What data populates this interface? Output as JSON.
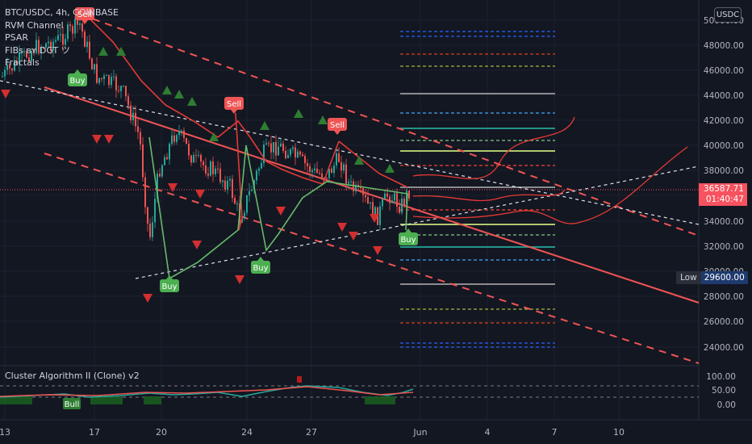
{
  "header": {
    "symbol_line": "BTC/USDC, 4h, COINBASE",
    "indicators": [
      "RVM Channel",
      "PSAR",
      "FIBs ʙʏ DGT ツ",
      "Fractals"
    ]
  },
  "sub_panel": {
    "title": "Cluster Algorithm II (Clone) v2"
  },
  "currency_button": "USDC",
  "last_price": {
    "value": "36587.71",
    "countdown": "01:40:47"
  },
  "low_marker": {
    "label": "Low",
    "value": "29600.00"
  },
  "price_axis": [
    "50000.00",
    "48000.00",
    "46000.00",
    "44000.00",
    "42000.00",
    "40000.00",
    "38000.00",
    "34000.00",
    "32000.00",
    "30000.00",
    "28000.00",
    "26000.00",
    "24000.00"
  ],
  "sub_axis": [
    "100.00",
    "50.00",
    "0.00"
  ],
  "time_axis": [
    "13",
    "17",
    "20",
    "24",
    "27",
    "Jun",
    "4",
    "7",
    "10"
  ],
  "signals": {
    "buy": "Buy",
    "sell": "Sell",
    "bull": "Bull"
  },
  "colors": {
    "background": "#131722",
    "up": "#26a69a",
    "down": "#ef5350",
    "buy": "#4caf50",
    "sell": "#f05454",
    "last_price": "#f7525f",
    "low": "#1e3a6e"
  }
}
